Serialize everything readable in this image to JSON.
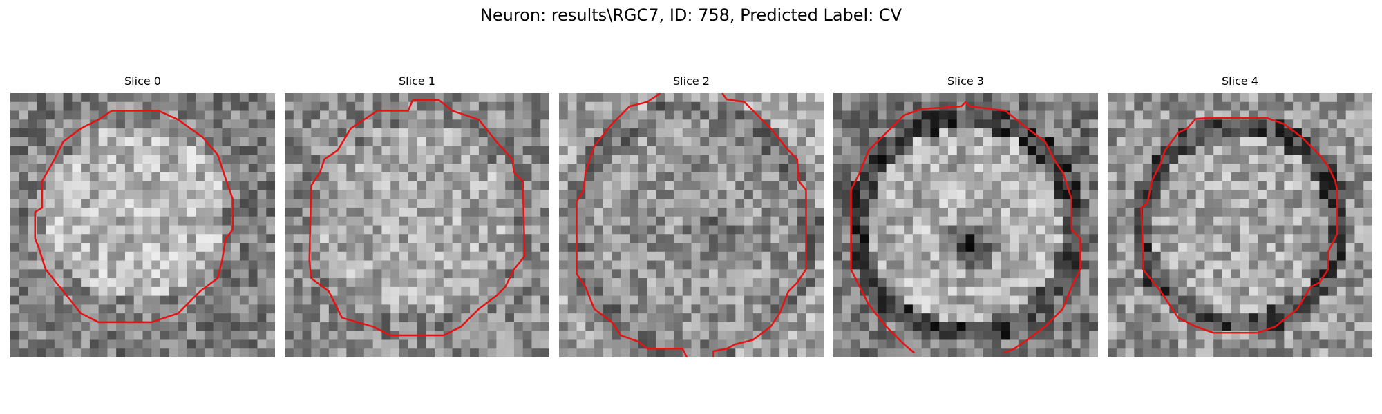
{
  "figure": {
    "suptitle": "Neuron: results\\RGC7, ID: 758, Predicted Label: CV"
  },
  "panels": [
    {
      "title": "Slice 0"
    },
    {
      "title": "Slice 1"
    },
    {
      "title": "Slice 2"
    },
    {
      "title": "Slice 3"
    },
    {
      "title": "Slice 4"
    }
  ],
  "colors": {
    "contour": "#e41414",
    "background": "#ffffff"
  }
}
